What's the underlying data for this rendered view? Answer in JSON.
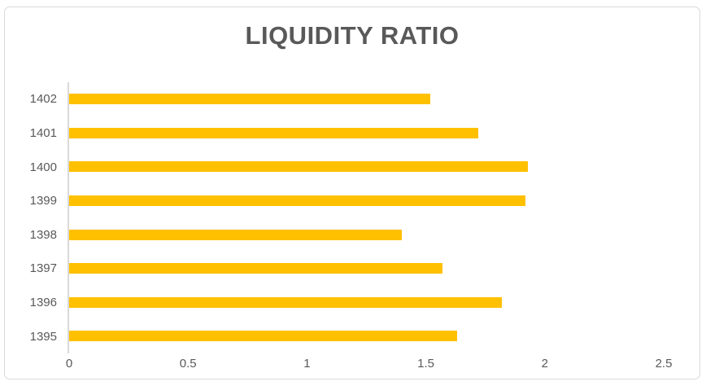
{
  "chart_data": {
    "type": "bar",
    "orientation": "horizontal",
    "title": "LIQUIDITY RATIO",
    "categories": [
      "1402",
      "1401",
      "1400",
      "1399",
      "1398",
      "1397",
      "1396",
      "1395"
    ],
    "values": [
      1.52,
      1.72,
      1.93,
      1.92,
      1.4,
      1.57,
      1.82,
      1.63
    ],
    "xlabel": "",
    "ylabel": "",
    "xlim": [
      0,
      2.5
    ],
    "x_ticks": [
      "0",
      "0.5",
      "1",
      "1.5",
      "2",
      "2.5"
    ],
    "x_tick_values": [
      0,
      0.5,
      1,
      1.5,
      2,
      2.5
    ],
    "grid": false,
    "legend_position": "none",
    "bar_color": "#FFC000",
    "axis_line_color": "#D9D9D9",
    "frame_border_color": "#D9D9D9",
    "text_color": "#595959",
    "background_color": "#FFFFFF"
  }
}
